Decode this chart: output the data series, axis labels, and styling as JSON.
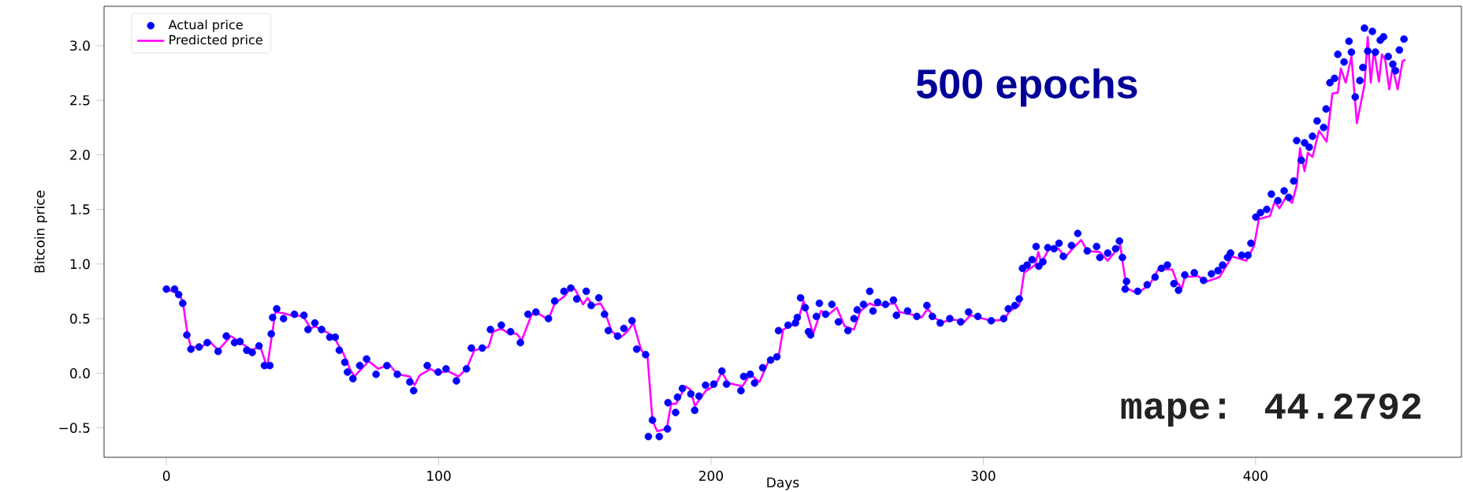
{
  "chart_data": {
    "type": "scatter",
    "xlabel": "Days",
    "ylabel": "Bitcoin price",
    "annotations": [
      "500 epochs",
      "mape: 44.2792"
    ],
    "xlim": [
      -22.9,
      475.6
    ],
    "ylim": [
      -0.77,
      3.36
    ],
    "xticks": [
      0,
      100,
      200,
      300,
      400
    ],
    "yticks": [
      {
        "value": -0.5,
        "label": "−0.5"
      },
      {
        "value": 0,
        "label": "0.0"
      },
      {
        "value": 0.5,
        "label": "0.5"
      },
      {
        "value": 1,
        "label": "1.0"
      },
      {
        "value": 1.5,
        "label": "1.5"
      },
      {
        "value": 2,
        "label": "2.0"
      },
      {
        "value": 2.5,
        "label": "2.5"
      },
      {
        "value": 3,
        "label": "3.0"
      }
    ],
    "grid": false,
    "legend": "top left",
    "series": [
      {
        "name": "Actual price",
        "type": "scatter",
        "marker": "circle",
        "color": "#0000ff",
        "x": [
          0,
          3,
          4.5,
          6,
          7.5,
          9,
          12,
          15,
          19,
          22,
          25,
          27,
          29.5,
          31.5,
          34,
          36,
          38,
          38.5,
          39,
          40.5,
          43,
          47,
          50.5,
          52,
          54.5,
          57,
          60,
          62,
          63.5,
          65.5,
          66.5,
          68.5,
          71,
          73.5,
          77,
          81,
          84.8,
          89.4,
          90.8,
          95.8,
          99.8,
          102.7,
          106.5,
          110.2,
          112,
          116,
          119,
          123,
          126.4,
          130,
          132.8,
          135.7,
          140.3,
          142.6,
          146,
          148.5,
          150.7,
          154.2,
          156,
          158.8,
          160.9,
          162.3,
          165.7,
          168,
          171,
          172.7,
          176,
          177,
          178.5,
          181,
          184,
          184.2,
          187,
          187.7,
          189.5,
          192.6,
          194,
          195.6,
          198,
          201,
          204,
          205.7,
          211,
          212,
          214.4,
          216,
          219,
          221.9,
          224.2,
          224.8,
          228.3,
          231,
          231.7,
          232.9,
          234.6,
          235.8,
          236.6,
          238.7,
          239.8,
          242.1,
          244.4,
          246.8,
          250.3,
          252.5,
          253.7,
          256,
          258.3,
          259.5,
          261.2,
          264.1,
          267,
          268.1,
          272.2,
          275.6,
          279.3,
          281.3,
          284.2,
          287.7,
          291.7,
          294.6,
          298,
          302.9,
          307.5,
          309.2,
          311.6,
          313.2,
          314.4,
          316.1,
          317.9,
          319.4,
          320.4,
          321.9,
          323.7,
          326,
          327.8,
          329.4,
          332.4,
          334.7,
          338.2,
          341.6,
          342.8,
          345.7,
          348.6,
          350,
          351.1,
          352.1,
          352.6,
          356.7,
          360.2,
          363.1,
          365.4,
          367.6,
          370,
          371.7,
          374,
          377.5,
          380.9,
          383.8,
          386.2,
          387.9,
          389.7,
          390.8,
          394.9,
          397.2,
          398.3,
          400.1,
          401.8,
          404.1,
          405.8,
          408.2,
          410.5,
          412.2,
          414,
          415.1,
          416.8,
          418,
          419.7,
          420.9,
          422.6,
          425,
          425.9,
          427.3,
          429,
          430.2,
          432.5,
          434.3,
          435.2,
          436.6,
          438.3,
          439.4,
          440,
          441.2,
          442.9,
          444,
          445.8,
          447,
          448.7,
          450.4,
          451.4,
          452.8,
          454.5
        ],
        "values": [
          0.77,
          0.77,
          0.72,
          0.64,
          0.35,
          0.22,
          0.24,
          0.28,
          0.2,
          0.34,
          0.28,
          0.29,
          0.21,
          0.19,
          0.25,
          0.07,
          0.07,
          0.36,
          0.51,
          0.59,
          0.5,
          0.54,
          0.53,
          0.4,
          0.46,
          0.4,
          0.33,
          0.33,
          0.21,
          0.1,
          0.01,
          -0.05,
          0.07,
          0.13,
          -0.01,
          0.07,
          -0.01,
          -0.08,
          -0.16,
          0.07,
          0.01,
          0.04,
          -0.07,
          0.04,
          0.23,
          0.23,
          0.4,
          0.44,
          0.38,
          0.28,
          0.54,
          0.56,
          0.5,
          0.66,
          0.75,
          0.78,
          0.68,
          0.75,
          0.62,
          0.69,
          0.54,
          0.39,
          0.34,
          0.41,
          0.48,
          0.22,
          0.17,
          -0.58,
          -0.43,
          -0.58,
          -0.51,
          -0.27,
          -0.36,
          -0.22,
          -0.14,
          -0.19,
          -0.34,
          -0.21,
          -0.11,
          -0.1,
          0.02,
          -0.1,
          -0.16,
          -0.03,
          -0.01,
          -0.09,
          0.05,
          0.12,
          0.15,
          0.39,
          0.44,
          0.46,
          0.51,
          0.69,
          0.6,
          0.38,
          0.35,
          0.52,
          0.64,
          0.54,
          0.63,
          0.47,
          0.39,
          0.5,
          0.58,
          0.63,
          0.75,
          0.57,
          0.65,
          0.63,
          0.67,
          0.53,
          0.57,
          0.52,
          0.62,
          0.52,
          0.46,
          0.5,
          0.47,
          0.56,
          0.52,
          0.48,
          0.5,
          0.59,
          0.62,
          0.68,
          0.96,
          0.99,
          1.04,
          1.16,
          0.98,
          1.02,
          1.15,
          1.14,
          1.19,
          1.07,
          1.17,
          1.28,
          1.12,
          1.16,
          1.06,
          1.1,
          1.14,
          1.21,
          1.06,
          0.77,
          0.84,
          0.75,
          0.81,
          0.88,
          0.96,
          0.99,
          0.82,
          0.76,
          0.9,
          0.92,
          0.85,
          0.91,
          0.94,
          0.99,
          1.06,
          1.1,
          1.08,
          1.08,
          1.19,
          1.43,
          1.47,
          1.5,
          1.64,
          1.58,
          1.67,
          1.61,
          1.76,
          2.13,
          1.95,
          2.11,
          2.07,
          2.17,
          2.31,
          2.25,
          2.42,
          2.66,
          2.7,
          2.92,
          2.85,
          3.04,
          2.94,
          2.53,
          2.68,
          2.8,
          3.16,
          2.95,
          3.13,
          2.94,
          3.05,
          3.08,
          2.9,
          2.83,
          2.77,
          2.96,
          3.06
        ]
      },
      {
        "name": "Predicted price",
        "type": "line",
        "marker": "none",
        "line_style": "solid",
        "color": "#ff00ff",
        "x": [
          0,
          4.5,
          6,
          7.8,
          9,
          13,
          15.6,
          19,
          23.7,
          26,
          31.5,
          34.4,
          37,
          40,
          43,
          47,
          50,
          53,
          54.6,
          59.3,
          62,
          65,
          67.4,
          69,
          74.3,
          77.8,
          81.9,
          84.8,
          89.4,
          91.1,
          93,
          97,
          99.8,
          103.3,
          107.3,
          110.2,
          113.1,
          118.3,
          120,
          123,
          125.3,
          128.7,
          130.5,
          134,
          135.7,
          140.3,
          142.6,
          146,
          148.5,
          150,
          153,
          154.7,
          156.5,
          159.4,
          161,
          163.5,
          166.9,
          169.2,
          171.5,
          174.4,
          176.7,
          178.5,
          180.2,
          183.7,
          185.4,
          187.2,
          190.7,
          192.4,
          194.1,
          198.1,
          201.6,
          204,
          206.3,
          211.5,
          214.4,
          217.8,
          221.3,
          224.8,
          226.5,
          231.7,
          234,
          237.5,
          240.4,
          243.3,
          246.2,
          249.1,
          252.5,
          254.9,
          258.3,
          260.1,
          267.5,
          269.2,
          273.3,
          277.3,
          279.6,
          282.5,
          284.9,
          289.5,
          293,
          295.3,
          302.9,
          307.5,
          309.8,
          313.2,
          315,
          319,
          320.2,
          321.3,
          324.2,
          327.7,
          330,
          332.4,
          335.9,
          338.2,
          342.8,
          345.7,
          350.3,
          352.6,
          356.7,
          361.3,
          364.2,
          369.4,
          371.2,
          372.9,
          374,
          378.7,
          382.1,
          386.7,
          391.4,
          396.6,
          399.5,
          401.2,
          405.3,
          407,
          408.8,
          411.1,
          413.4,
          415.1,
          416.3,
          418,
          419.2,
          420.9,
          423.3,
          426.1,
          428.2,
          430.2,
          431.3,
          433.1,
          435.2,
          437.2,
          440,
          441.2,
          442.3,
          443.5,
          445.3,
          446.4,
          447.6,
          449.1,
          450.3,
          452.2,
          454,
          455.1
        ],
        "values": [
          0.77,
          0.73,
          0.66,
          0.35,
          0.24,
          0.24,
          0.3,
          0.21,
          0.34,
          0.3,
          0.21,
          0.25,
          0.05,
          0.56,
          0.55,
          0.52,
          0.53,
          0.41,
          0.43,
          0.37,
          0.31,
          0.18,
          0.04,
          -0.03,
          0.11,
          0.04,
          0.08,
          -0.01,
          -0.03,
          -0.11,
          -0.02,
          0.04,
          0.0,
          0.02,
          -0.03,
          0.04,
          0.21,
          0.24,
          0.38,
          0.41,
          0.37,
          0.36,
          0.3,
          0.53,
          0.56,
          0.49,
          0.64,
          0.7,
          0.78,
          0.77,
          0.63,
          0.69,
          0.62,
          0.64,
          0.57,
          0.38,
          0.33,
          0.38,
          0.46,
          0.21,
          0.15,
          -0.43,
          -0.53,
          -0.51,
          -0.28,
          -0.28,
          -0.12,
          -0.15,
          -0.3,
          -0.16,
          -0.11,
          0.01,
          -0.09,
          -0.12,
          -0.01,
          -0.08,
          0.12,
          0.15,
          0.4,
          0.46,
          0.66,
          0.36,
          0.57,
          0.54,
          0.6,
          0.43,
          0.4,
          0.57,
          0.64,
          0.62,
          0.64,
          0.56,
          0.54,
          0.51,
          0.59,
          0.5,
          0.47,
          0.49,
          0.47,
          0.53,
          0.48,
          0.49,
          0.57,
          0.62,
          0.92,
          0.99,
          1.11,
          1.01,
          1.14,
          1.14,
          1.06,
          1.13,
          1.22,
          1.12,
          1.11,
          1.03,
          1.17,
          0.78,
          0.73,
          0.82,
          0.95,
          0.95,
          0.83,
          0.78,
          0.88,
          0.89,
          0.84,
          0.88,
          1.07,
          1.03,
          1.17,
          1.41,
          1.44,
          1.57,
          1.51,
          1.61,
          1.56,
          1.72,
          2.06,
          1.85,
          2.02,
          1.98,
          2.22,
          2.12,
          2.56,
          2.57,
          2.79,
          2.66,
          2.9,
          2.29,
          2.64,
          3.08,
          2.66,
          2.96,
          2.67,
          2.92,
          2.87,
          2.6,
          2.8,
          2.6,
          2.86,
          2.87
        ]
      }
    ]
  }
}
